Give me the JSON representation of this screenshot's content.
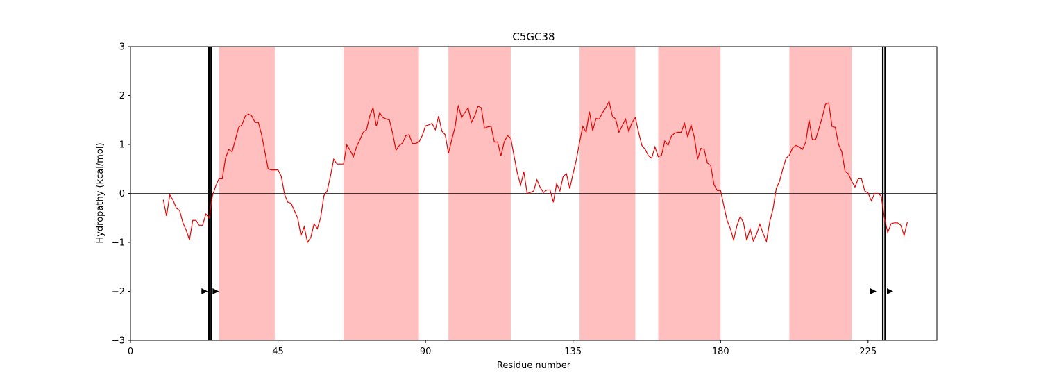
{
  "chart_data": {
    "type": "line",
    "title": "C5GC38",
    "xlabel": "Residue number",
    "ylabel": "Hydropathy (kcal/mol)",
    "xlim": [
      0,
      246
    ],
    "ylim": [
      -3,
      3
    ],
    "xticks": [
      0,
      45,
      90,
      135,
      180,
      225
    ],
    "yticks": [
      -3,
      -2,
      -1,
      0,
      1,
      2,
      3
    ],
    "zero_line": 0,
    "grid": false,
    "line_color": "#e60000",
    "band_color": "#ffbfbf",
    "bands": [
      [
        27,
        44
      ],
      [
        65,
        88
      ],
      [
        97,
        116
      ],
      [
        137,
        154
      ],
      [
        161,
        180
      ],
      [
        201,
        220
      ]
    ],
    "boundaries": [
      [
        23.9,
        24.6
      ],
      [
        229.5,
        230.2
      ]
    ],
    "markers": [
      {
        "x": 22.5,
        "y": -2
      },
      {
        "x": 25.9,
        "y": -2
      },
      {
        "x": 226.5,
        "y": -2
      },
      {
        "x": 231.6,
        "y": -2
      }
    ],
    "series": [
      {
        "x": [
          10,
          11,
          12,
          13,
          14,
          15,
          16,
          17,
          18,
          19,
          20,
          21,
          22,
          23,
          24,
          25,
          26,
          27,
          28,
          29,
          30,
          31,
          32,
          33,
          34,
          35,
          36,
          37,
          38,
          39,
          40,
          41,
          42,
          43,
          44,
          45,
          46,
          47,
          48,
          49,
          50,
          51,
          52,
          53,
          54,
          55,
          56,
          57,
          58,
          59,
          60,
          61,
          62,
          63,
          64,
          65,
          66,
          67,
          68,
          69,
          70,
          71,
          72,
          73,
          74,
          75,
          76,
          77,
          78,
          79,
          80,
          81,
          82,
          83,
          84,
          85,
          86,
          87,
          88,
          89,
          90,
          91,
          92,
          93,
          94,
          95,
          96,
          97,
          98,
          99,
          100,
          101,
          102,
          103,
          104,
          105,
          106,
          107,
          108,
          109,
          110,
          111,
          112,
          113,
          114,
          115,
          116,
          117,
          118,
          119,
          120,
          121,
          122,
          123,
          124,
          125,
          126,
          127,
          128,
          129,
          130,
          131,
          132,
          133,
          134,
          135,
          136,
          137,
          138,
          139,
          140,
          141,
          142,
          143,
          144,
          145,
          146,
          147,
          148,
          149,
          150,
          151,
          152,
          153,
          154,
          155,
          156,
          157,
          158,
          159,
          160,
          161,
          162,
          163,
          164,
          165,
          166,
          167,
          168,
          169,
          170,
          171,
          172,
          173,
          174,
          175,
          176,
          177,
          178,
          179,
          180,
          181,
          182,
          183,
          184,
          185,
          186,
          187,
          188,
          189,
          190,
          191,
          192,
          193,
          194,
          195,
          196,
          197,
          198,
          199,
          200,
          201,
          202,
          203,
          204,
          205,
          206,
          207,
          208,
          209,
          210,
          211,
          212,
          213,
          214,
          215,
          216,
          217,
          218,
          219,
          220,
          221,
          222,
          223,
          224,
          225,
          226,
          227,
          228,
          229,
          230,
          231,
          232,
          233,
          234,
          235,
          236,
          237
        ],
        "y": [
          -0.13,
          -0.46,
          -0.03,
          -0.14,
          -0.3,
          -0.35,
          -0.6,
          -0.75,
          -0.95,
          -0.55,
          -0.55,
          -0.65,
          -0.65,
          -0.42,
          -0.5,
          -0.05,
          0.15,
          0.3,
          0.3,
          0.72,
          0.9,
          0.85,
          1.1,
          1.35,
          1.4,
          1.58,
          1.62,
          1.58,
          1.45,
          1.45,
          1.2,
          0.85,
          0.5,
          0.48,
          0.48,
          0.48,
          0.35,
          -0.02,
          -0.18,
          -0.2,
          -0.35,
          -0.5,
          -0.86,
          -0.68,
          -1.0,
          -0.9,
          -0.62,
          -0.72,
          -0.5,
          -0.05,
          0.05,
          0.35,
          0.7,
          0.6,
          0.6,
          0.6,
          0.99,
          0.88,
          0.75,
          0.96,
          1.1,
          1.25,
          1.3,
          1.58,
          1.75,
          1.37,
          1.65,
          1.55,
          1.52,
          1.5,
          1.22,
          0.88,
          0.98,
          1.03,
          1.18,
          1.2,
          1.02,
          1.02,
          1.05,
          1.18,
          1.38,
          1.4,
          1.43,
          1.3,
          1.58,
          1.27,
          1.2,
          0.82,
          1.1,
          1.35,
          1.8,
          1.55,
          1.65,
          1.75,
          1.45,
          1.58,
          1.78,
          1.75,
          1.33,
          1.36,
          1.37,
          1.05,
          1.05,
          0.76,
          1.05,
          1.18,
          1.13,
          0.77,
          0.42,
          0.17,
          0.44,
          0.0,
          0.02,
          0.05,
          0.28,
          0.12,
          0.02,
          0.07,
          0.07,
          -0.18,
          0.2,
          0.05,
          0.35,
          0.4,
          0.1,
          0.4,
          0.68,
          1.05,
          1.37,
          1.25,
          1.67,
          1.28,
          1.53,
          1.52,
          1.65,
          1.75,
          1.88,
          1.58,
          1.52,
          1.25,
          1.38,
          1.52,
          1.27,
          1.45,
          1.55,
          1.25,
          0.98,
          0.9,
          0.77,
          0.72,
          0.95,
          0.75,
          0.78,
          1.07,
          0.98,
          1.17,
          1.23,
          1.25,
          1.25,
          1.43,
          1.15,
          1.4,
          1.15,
          0.7,
          0.92,
          0.9,
          0.62,
          0.57,
          0.18,
          0.06,
          0.06,
          -0.25,
          -0.55,
          -0.72,
          -0.95,
          -0.66,
          -0.47,
          -0.6,
          -0.96,
          -0.72,
          -0.97,
          -0.83,
          -0.63,
          -0.82,
          -0.98,
          -0.58,
          -0.32,
          0.1,
          0.25,
          0.5,
          0.72,
          0.78,
          0.93,
          0.98,
          0.95,
          0.9,
          1.05,
          1.5,
          1.1,
          1.1,
          1.32,
          1.55,
          1.82,
          1.85,
          1.37,
          1.35,
          1.0,
          0.85,
          0.45,
          0.4,
          0.25,
          0.13,
          0.3,
          0.3,
          0.05,
          0.01,
          -0.15,
          0.0,
          0.0,
          -0.05,
          -0.5,
          -0.8,
          -0.62,
          -0.6,
          -0.6,
          -0.65,
          -0.86,
          -0.58
        ]
      }
    ]
  }
}
